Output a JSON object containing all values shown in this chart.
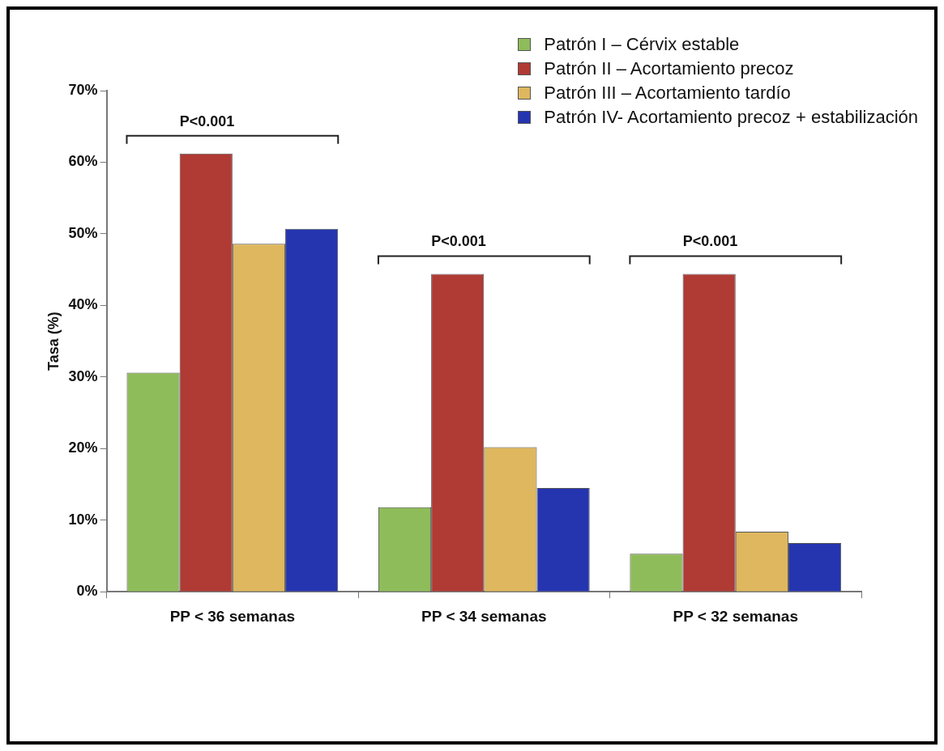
{
  "chart_data": {
    "type": "bar",
    "ylabel": "Tasa (%)",
    "categories": [
      "PP < 36 semanas",
      "PP < 34 semanas",
      "PP < 32 semanas"
    ],
    "series": [
      {
        "name": "Patrón I – Cérvix estable",
        "color": "#8fbc5a",
        "values": [
          30.6,
          11.8,
          5.3
        ]
      },
      {
        "name": "Patrón II – Acortamiento precoz",
        "color": "#b03a34",
        "values": [
          61.2,
          44.4,
          44.4
        ]
      },
      {
        "name": "Patrón III – Acortamiento tardío",
        "color": "#deb75e",
        "values": [
          48.6,
          20.2,
          8.4
        ]
      },
      {
        "name": "Patrón IV- Acortamiento precoz + estabilización",
        "color": "#2535b0",
        "values": [
          50.7,
          14.5,
          6.8
        ]
      }
    ],
    "ylim": [
      0,
      70
    ],
    "yticks": [
      {
        "value": 0,
        "label": "0%"
      },
      {
        "value": 10,
        "label": "10%"
      },
      {
        "value": 20,
        "label": "20%"
      },
      {
        "value": 30,
        "label": "30%"
      },
      {
        "value": 40,
        "label": "40%"
      },
      {
        "value": 50,
        "label": "50%"
      },
      {
        "value": 60,
        "label": "60%"
      },
      {
        "value": 70,
        "label": "70%"
      }
    ],
    "annotations": [
      "P<0.001",
      "P<0.001",
      "P<0.001"
    ],
    "grid": false,
    "legend": "top right"
  }
}
